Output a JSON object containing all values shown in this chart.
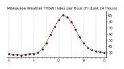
{
  "title": "Milwaukee Weather THSW Index per Hour (F) (Last 24 Hours)",
  "hours": [
    0,
    1,
    2,
    3,
    4,
    5,
    6,
    7,
    8,
    9,
    10,
    11,
    12,
    13,
    14,
    15,
    16,
    17,
    18,
    19,
    20,
    21,
    22,
    23
  ],
  "values": [
    28,
    27,
    27,
    26,
    27,
    28,
    28,
    30,
    36,
    46,
    59,
    72,
    83,
    91,
    88,
    80,
    68,
    55,
    45,
    38,
    34,
    32,
    31,
    30
  ],
  "line_color": "#cc0000",
  "marker_color": "#111111",
  "bg_color": "#ffffff",
  "grid_color": "#999999",
  "ylim": [
    22,
    98
  ],
  "yticks": [
    30,
    40,
    50,
    60,
    70,
    80,
    90
  ],
  "ylabel_fontsize": 3.5,
  "xlabel_fontsize": 3.2,
  "title_fontsize": 3.8,
  "xtick_positions": [
    0,
    1,
    2,
    3,
    4,
    5,
    6,
    7,
    8,
    9,
    10,
    11,
    12,
    13,
    14,
    15,
    16,
    17,
    18,
    19,
    20,
    21,
    22,
    23
  ],
  "xtick_labels": [
    "0",
    "",
    "",
    "",
    "",
    "",
    "6",
    "",
    "",
    "",
    "",
    "",
    "12",
    "",
    "",
    "",
    "",
    "",
    "18",
    "",
    "",
    "",
    "",
    "23"
  ]
}
